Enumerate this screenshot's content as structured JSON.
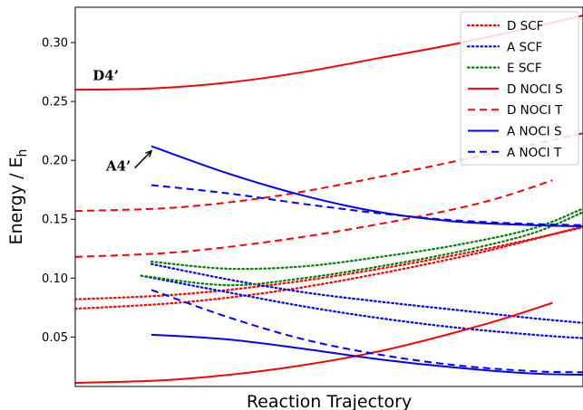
{
  "chart_data": {
    "type": "line",
    "xlabel": "Reaction Trajectory",
    "ylabel": "Energy / E",
    "ylabel_sub": "h",
    "xlim": [
      0,
      1
    ],
    "ylim": [
      0.008,
      0.33
    ],
    "yticks": [
      0.05,
      0.1,
      0.15,
      0.2,
      0.25,
      0.3
    ],
    "ytick_labels": [
      "0.05",
      "0.10",
      "0.15",
      "0.20",
      "0.25",
      "0.30"
    ],
    "grid": false,
    "legend_position": "top-right",
    "annotations": [
      {
        "text": "D4’",
        "x": 0.06,
        "y": 0.272
      },
      {
        "text": "A4’",
        "x": 0.085,
        "y": 0.195,
        "arrow_to": [
          0.15,
          0.208
        ]
      }
    ],
    "series": [
      {
        "name": "D SCF",
        "color": "#ff0000",
        "style": "dotted",
        "group": "D SCF",
        "x": [
          0,
          0.2,
          0.4,
          0.6,
          0.8,
          1.0
        ],
        "y": [
          0.082,
          0.086,
          0.095,
          0.108,
          0.124,
          0.143
        ]
      },
      {
        "name": "D SCF",
        "color": "#ff0000",
        "style": "dotted",
        "group": "D SCF",
        "x": [
          0,
          0.2,
          0.4,
          0.6,
          0.8,
          1.0
        ],
        "y": [
          0.074,
          0.079,
          0.089,
          0.104,
          0.122,
          0.144
        ]
      },
      {
        "name": "A SCF",
        "color": "#0000ff",
        "style": "dotted",
        "group": "A SCF",
        "x": [
          0.15,
          0.3,
          0.45,
          0.6,
          0.75,
          0.9,
          1.0
        ],
        "y": [
          0.112,
          0.099,
          0.088,
          0.08,
          0.073,
          0.066,
          0.062
        ]
      },
      {
        "name": "A SCF",
        "color": "#0000ff",
        "style": "dotted",
        "group": "A SCF",
        "x": [
          0.13,
          0.3,
          0.45,
          0.6,
          0.75,
          0.9,
          1.0
        ],
        "y": [
          0.102,
          0.088,
          0.076,
          0.066,
          0.058,
          0.052,
          0.049
        ]
      },
      {
        "name": "E SCF",
        "color": "#008000",
        "style": "dotted",
        "group": "E SCF",
        "x": [
          0.15,
          0.3,
          0.45,
          0.6,
          0.75,
          0.9,
          1.0
        ],
        "y": [
          0.114,
          0.108,
          0.11,
          0.118,
          0.128,
          0.142,
          0.159
        ]
      },
      {
        "name": "E SCF",
        "color": "#008000",
        "style": "dotted",
        "group": "E SCF",
        "x": [
          0.13,
          0.3,
          0.45,
          0.6,
          0.75,
          0.9,
          1.0
        ],
        "y": [
          0.102,
          0.094,
          0.1,
          0.11,
          0.122,
          0.138,
          0.156
        ]
      },
      {
        "name": "D NOCI S",
        "color": "#ff0000",
        "style": "solid",
        "group": "D NOCI S",
        "x": [
          0,
          0.15,
          0.3,
          0.45,
          0.6,
          0.75,
          0.9,
          1.0
        ],
        "y": [
          0.26,
          0.261,
          0.266,
          0.275,
          0.287,
          0.299,
          0.313,
          0.323
        ]
      },
      {
        "name": "D NOCI S",
        "color": "#ff0000",
        "style": "solid",
        "group": "D NOCI S",
        "x": [
          0,
          0.2,
          0.4,
          0.6,
          0.8,
          0.94
        ],
        "y": [
          0.011,
          0.014,
          0.023,
          0.038,
          0.06,
          0.079
        ]
      },
      {
        "name": "D NOCI T",
        "color": "#ff0000",
        "style": "dashed",
        "group": "D NOCI T",
        "x": [
          0,
          0.2,
          0.4,
          0.6,
          0.8,
          1.0
        ],
        "y": [
          0.157,
          0.16,
          0.17,
          0.186,
          0.204,
          0.223
        ]
      },
      {
        "name": "D NOCI T",
        "color": "#ff0000",
        "style": "dashed",
        "group": "D NOCI T",
        "x": [
          0,
          0.2,
          0.4,
          0.6,
          0.8,
          0.94
        ],
        "y": [
          0.118,
          0.122,
          0.132,
          0.146,
          0.164,
          0.183
        ]
      },
      {
        "name": "A NOCI S",
        "color": "#0000ff",
        "style": "solid",
        "group": "A NOCI S",
        "x": [
          0.15,
          0.3,
          0.45,
          0.6,
          0.75,
          0.9,
          1.0
        ],
        "y": [
          0.212,
          0.189,
          0.17,
          0.156,
          0.148,
          0.145,
          0.144
        ]
      },
      {
        "name": "A NOCI S",
        "color": "#0000ff",
        "style": "solid",
        "group": "A NOCI S",
        "x": [
          0.15,
          0.3,
          0.45,
          0.6,
          0.75,
          0.9,
          1.0
        ],
        "y": [
          0.052,
          0.048,
          0.04,
          0.031,
          0.024,
          0.019,
          0.018
        ]
      },
      {
        "name": "A NOCI T",
        "color": "#0000ff",
        "style": "dashed",
        "group": "A NOCI T",
        "x": [
          0.15,
          0.3,
          0.45,
          0.6,
          0.75,
          0.9,
          1.0
        ],
        "y": [
          0.179,
          0.172,
          0.163,
          0.155,
          0.149,
          0.146,
          0.145
        ]
      },
      {
        "name": "A NOCI T",
        "color": "#0000ff",
        "style": "dashed",
        "group": "A NOCI T",
        "x": [
          0.15,
          0.3,
          0.45,
          0.6,
          0.75,
          0.9,
          1.0
        ],
        "y": [
          0.09,
          0.067,
          0.048,
          0.035,
          0.026,
          0.021,
          0.02
        ]
      }
    ],
    "legend": [
      {
        "label": "D SCF",
        "color": "#ff0000",
        "style": "dotted"
      },
      {
        "label": "A SCF",
        "color": "#0000ff",
        "style": "dotted"
      },
      {
        "label": "E SCF",
        "color": "#008000",
        "style": "dotted"
      },
      {
        "label": "D NOCI S",
        "color": "#ff0000",
        "style": "solid"
      },
      {
        "label": "D NOCI T",
        "color": "#ff0000",
        "style": "dashed"
      },
      {
        "label": "A NOCI S",
        "color": "#0000ff",
        "style": "solid"
      },
      {
        "label": "A NOCI T",
        "color": "#0000ff",
        "style": "dashed"
      }
    ]
  }
}
